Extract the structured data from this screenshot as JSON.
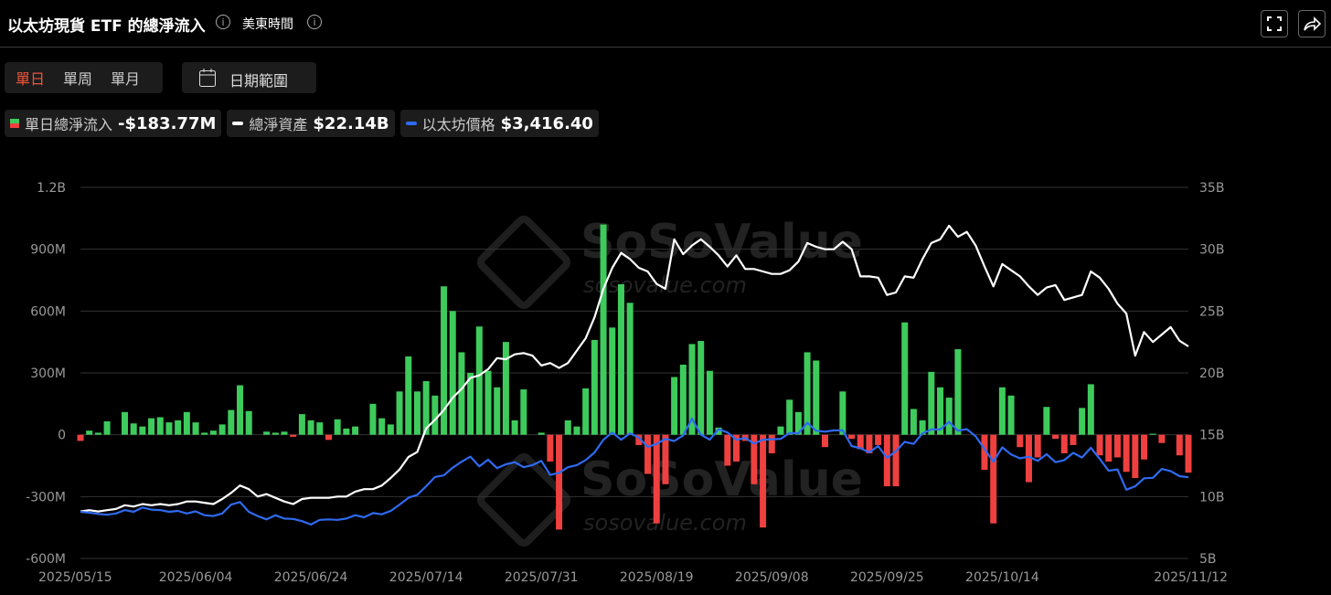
{
  "header": {
    "title": "以太坊現貨 ETF 的總淨流入",
    "timezone": "美東時間",
    "tabs": [
      "單日",
      "單周",
      "單月"
    ],
    "date_range": "日期範圍"
  },
  "chart_data": {
    "type": "bar",
    "watermark": {
      "brand": "SoSoValue",
      "url": "sosovalue.com"
    },
    "categories": [
      "2025/05/15",
      null,
      null,
      null,
      null,
      null,
      null,
      null,
      null,
      null,
      null,
      null,
      null,
      "2025/06/04",
      null,
      null,
      null,
      null,
      null,
      null,
      null,
      null,
      null,
      null,
      null,
      null,
      "2025/06/24",
      null,
      null,
      null,
      null,
      null,
      null,
      null,
      null,
      null,
      null,
      null,
      null,
      "2025/07/14",
      null,
      null,
      null,
      null,
      null,
      null,
      null,
      null,
      null,
      null,
      null,
      null,
      "2025/07/31",
      null,
      null,
      null,
      null,
      null,
      null,
      null,
      null,
      null,
      null,
      null,
      null,
      "2025/08/19",
      null,
      null,
      null,
      null,
      null,
      null,
      null,
      null,
      null,
      null,
      null,
      null,
      "2025/09/08",
      null,
      null,
      null,
      null,
      null,
      null,
      null,
      null,
      null,
      null,
      null,
      null,
      "2025/09/25",
      null,
      null,
      null,
      null,
      null,
      null,
      null,
      null,
      null,
      null,
      null,
      null,
      "2025/10/14",
      null,
      null,
      null,
      null,
      null,
      null,
      null,
      null,
      null,
      null,
      null,
      null,
      null,
      null,
      null,
      null,
      null,
      null,
      null,
      null,
      "2025/11/12"
    ],
    "ylim": [
      -600,
      1200
    ],
    "yticks": [
      {
        "value": 1200,
        "label": "1.2B"
      },
      {
        "value": 900,
        "label": "900M"
      },
      {
        "value": 600,
        "label": "600M"
      },
      {
        "value": 300,
        "label": "300M"
      },
      0,
      {
        "value": -300,
        "label": "-300M"
      },
      {
        "value": -600,
        "label": "-600M"
      }
    ],
    "y2lim": [
      5,
      35
    ],
    "y2ticks": [
      {
        "value": 35,
        "label": "35B"
      },
      {
        "value": 30,
        "label": "30B"
      },
      {
        "value": 25,
        "label": "25B"
      },
      {
        "value": 20,
        "label": "20B"
      },
      {
        "value": 15,
        "label": "15B"
      },
      {
        "value": 10,
        "label": "10B"
      },
      {
        "value": 5,
        "label": "5B"
      }
    ],
    "y3lim": [
      1500,
      10250
    ],
    "grid": true,
    "series": [
      {
        "name": "單日總淨流入",
        "type": "bar",
        "color": "#3ecb5c",
        "negative_color": "#ef4040",
        "legend_value": "-$183.77M",
        "values": [
          -30,
          20,
          10,
          65,
          0,
          110,
          55,
          40,
          80,
          85,
          60,
          70,
          110,
          60,
          10,
          20,
          50,
          120,
          240,
          115,
          0,
          15,
          10,
          15,
          -10,
          100,
          70,
          60,
          -25,
          75,
          30,
          40,
          0,
          150,
          80,
          50,
          210,
          380,
          210,
          260,
          190,
          720,
          600,
          400,
          300,
          525,
          310,
          230,
          450,
          70,
          220,
          0,
          10,
          -130,
          -460,
          70,
          40,
          225,
          460,
          1020,
          520,
          730,
          640,
          -50,
          -190,
          -430,
          -240,
          280,
          340,
          440,
          455,
          310,
          35,
          -150,
          -130,
          -30,
          -240,
          -450,
          -90,
          40,
          170,
          110,
          400,
          360,
          -60,
          0,
          210,
          -20,
          -70,
          -90,
          -50,
          -250,
          -250,
          545,
          125,
          70,
          305,
          230,
          180,
          415,
          0,
          0,
          -170,
          -430,
          230,
          190,
          -60,
          -230,
          -110,
          135,
          -20,
          -90,
          -50,
          130,
          245,
          -100,
          -130,
          -110,
          -180,
          -210,
          -120,
          5,
          -40,
          0,
          -100,
          -183.77
        ]
      },
      {
        "name": "總淨資產",
        "type": "line",
        "axis": "y2",
        "color": "#ffffff",
        "legend_value": "$22.14B",
        "values": [
          8.8,
          8.9,
          8.8,
          8.9,
          9.0,
          9.3,
          9.2,
          9.4,
          9.3,
          9.4,
          9.3,
          9.4,
          9.6,
          9.6,
          9.5,
          9.4,
          9.8,
          10.3,
          10.9,
          10.6,
          10.0,
          10.2,
          9.9,
          9.6,
          9.4,
          9.8,
          9.9,
          9.9,
          9.9,
          10.0,
          10.0,
          10.4,
          10.6,
          10.6,
          10.9,
          11.5,
          12.2,
          13.2,
          13.6,
          15.5,
          16.2,
          17.0,
          18.0,
          18.7,
          19.6,
          19.8,
          20.3,
          21.2,
          21.1,
          21.5,
          21.6,
          21.4,
          20.6,
          20.8,
          20.4,
          20.8,
          21.8,
          22.8,
          24.5,
          26.8,
          28.5,
          29.7,
          29.2,
          28.5,
          28.2,
          27.2,
          26.8,
          30.8,
          29.6,
          30.3,
          30.8,
          30.2,
          29.5,
          28.6,
          29.5,
          28.4,
          28.4,
          28.2,
          28.0,
          28.0,
          28.3,
          29.0,
          30.5,
          30.2,
          30.0,
          30.0,
          30.6,
          30.0,
          27.8,
          27.8,
          27.7,
          26.3,
          26.5,
          27.8,
          27.7,
          29.2,
          30.5,
          30.8,
          31.9,
          31.0,
          31.4,
          30.3,
          28.6,
          27.0,
          28.8,
          28.3,
          27.8,
          27.0,
          26.3,
          26.9,
          27.1,
          25.9,
          26.1,
          26.3,
          28.2,
          27.7,
          26.8,
          25.6,
          24.8,
          21.4,
          23.3,
          22.5,
          23.1,
          23.7,
          22.6,
          22.14
        ]
      },
      {
        "name": "以太坊價格",
        "type": "line",
        "axis": "y3",
        "color": "#2f6af0",
        "legend_value": "$3,416.40",
        "values": [
          2600,
          2580,
          2550,
          2530,
          2560,
          2640,
          2600,
          2700,
          2650,
          2640,
          2600,
          2620,
          2560,
          2610,
          2520,
          2500,
          2560,
          2770,
          2830,
          2600,
          2500,
          2420,
          2520,
          2440,
          2430,
          2380,
          2300,
          2410,
          2420,
          2410,
          2440,
          2520,
          2470,
          2570,
          2540,
          2620,
          2770,
          2930,
          3000,
          3200,
          3420,
          3460,
          3640,
          3780,
          3900,
          3670,
          3830,
          3630,
          3720,
          3770,
          3650,
          3700,
          3800,
          3470,
          3520,
          3650,
          3700,
          3820,
          4000,
          4300,
          4470,
          4300,
          4450,
          4350,
          4130,
          4200,
          4320,
          4270,
          4400,
          4800,
          4420,
          4300,
          4550,
          4470,
          4300,
          4340,
          4210,
          4300,
          4310,
          4320,
          4460,
          4450,
          4700,
          4510,
          4490,
          4520,
          4520,
          4150,
          4100,
          4000,
          4150,
          3870,
          4030,
          4250,
          4200,
          4450,
          4540,
          4540,
          4720,
          4510,
          4550,
          4380,
          4080,
          3780,
          4120,
          3950,
          3860,
          3900,
          3800,
          3960,
          3770,
          3820,
          3990,
          3880,
          4110,
          3850,
          3570,
          3600,
          3120,
          3200,
          3390,
          3400,
          3610,
          3560,
          3440,
          3416.4
        ]
      }
    ]
  }
}
